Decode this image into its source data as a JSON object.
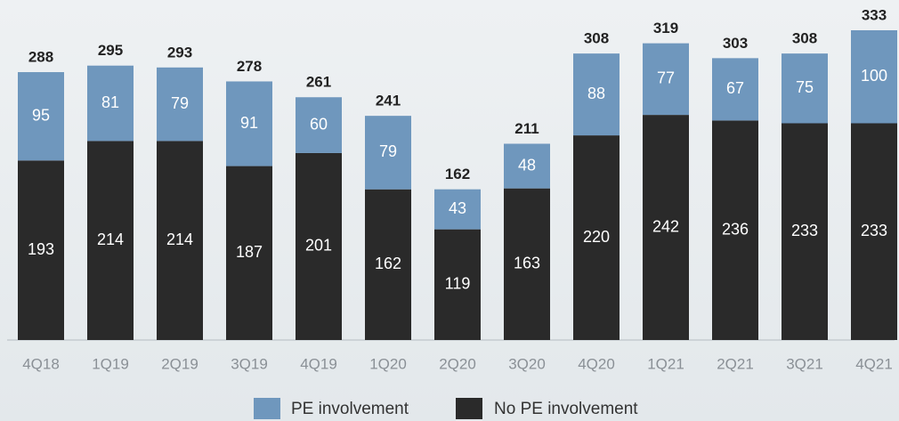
{
  "chart_data": {
    "type": "stacked_bar",
    "categories": [
      "4Q18",
      "1Q19",
      "2Q19",
      "3Q19",
      "4Q19",
      "1Q20",
      "2Q20",
      "3Q20",
      "4Q20",
      "1Q21",
      "2Q21",
      "3Q21",
      "4Q21"
    ],
    "series": [
      {
        "name": "PE involvement",
        "color": "#6f97bd",
        "values": [
          95,
          81,
          79,
          91,
          60,
          79,
          43,
          48,
          88,
          77,
          67,
          75,
          100
        ]
      },
      {
        "name": "No PE involvement",
        "color": "#2a2a2a",
        "values": [
          193,
          214,
          214,
          187,
          201,
          162,
          119,
          163,
          220,
          242,
          236,
          233,
          233
        ]
      }
    ],
    "totals": [
      288,
      295,
      293,
      278,
      261,
      241,
      162,
      211,
      308,
      319,
      303,
      308,
      333
    ]
  }
}
